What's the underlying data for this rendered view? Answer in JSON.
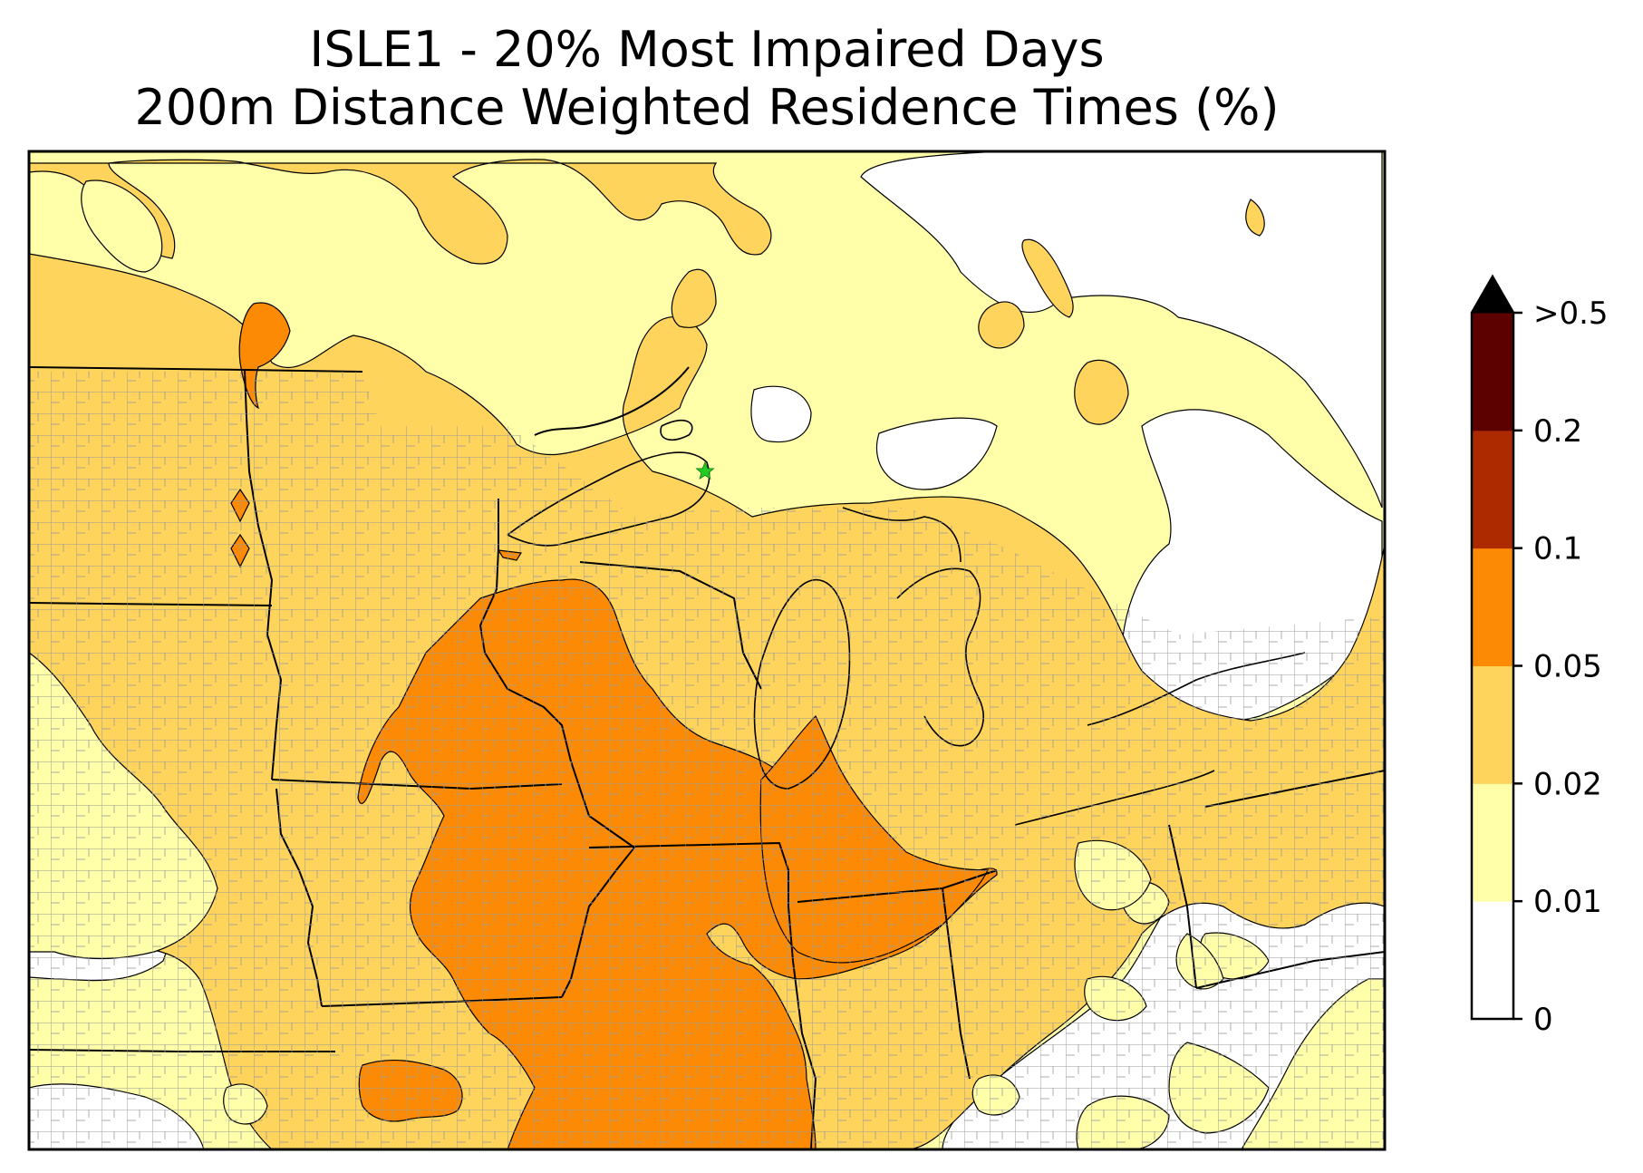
{
  "title_line1": "ISLE1 - 20% Most Impaired Days",
  "title_line2": "200m Distance Weighted Residence Times (%)",
  "colorbar": {
    "extend": "max",
    "bins": [
      {
        "label": "0",
        "color": "#ffffff"
      },
      {
        "label": "0.01",
        "color": "#ffffaa"
      },
      {
        "label": "0.02",
        "color": "#fed45c"
      },
      {
        "label": "0.05",
        "color": "#fd8a04"
      },
      {
        "label": "0.1",
        "color": "#ad2a00"
      },
      {
        "label": "0.2",
        "color": "#5d0000"
      },
      {
        "label": ">0.5",
        "color": "#000000"
      }
    ]
  },
  "receptor_marker": {
    "color": "#22cc22",
    "symbol": "star"
  },
  "boundary_colors": {
    "state": "#000000",
    "county": "#999999"
  },
  "icons": {
    "colorbar_extend": "triangle-arrow-icon",
    "receptor": "star-icon"
  }
}
